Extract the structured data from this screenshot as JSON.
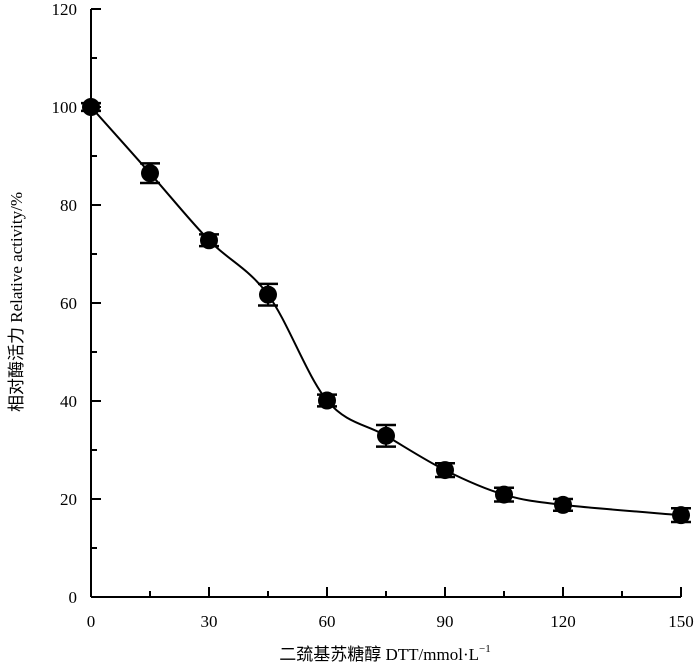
{
  "chart_data": {
    "type": "line",
    "xlabel": "二巯基苏糖醇 DTT/mmol·L",
    "xlabel_superscript": "−1",
    "ylabel": "相对酶活力 Relative activity/%",
    "xlim": [
      0,
      150
    ],
    "ylim": [
      0,
      120
    ],
    "x_ticks": [
      0,
      30,
      60,
      90,
      120,
      150
    ],
    "y_ticks": [
      0,
      20,
      40,
      60,
      80,
      100,
      120
    ],
    "grid": false,
    "series": [
      {
        "x": [
          0,
          15,
          30,
          45,
          60,
          75,
          90,
          105,
          120,
          150
        ],
        "y": [
          100,
          86.5,
          72.8,
          61.7,
          40.1,
          32.9,
          25.9,
          20.9,
          18.8,
          16.7
        ],
        "error": [
          0.8,
          2.0,
          1.2,
          2.2,
          1.2,
          2.2,
          1.4,
          1.4,
          1.2,
          1.4
        ],
        "color": "#000000"
      }
    ]
  }
}
